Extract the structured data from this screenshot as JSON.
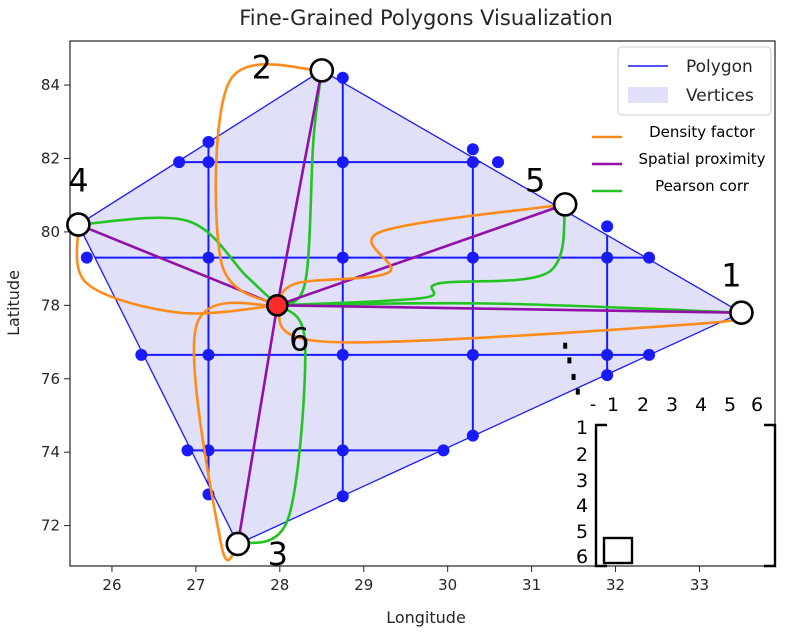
{
  "chart_data": {
    "type": "scatter",
    "title": "Fine-Grained Polygons Visualization",
    "xlabel": "Longitude",
    "ylabel": "Latitude",
    "xlim": [
      25.5,
      33.9
    ],
    "ylim": [
      70.9,
      85.2
    ],
    "xticks": [
      26,
      27,
      28,
      29,
      30,
      31,
      32,
      33
    ],
    "yticks": [
      72,
      74,
      76,
      78,
      80,
      82,
      84
    ],
    "grid": false,
    "legend_placement": "top-right",
    "colors": {
      "polygon_edge": "#1a1aff",
      "polygon_fill": "#e0e0f8",
      "density": "#ff8c1a",
      "spatial": "#9010a8",
      "pearson": "#22c422",
      "center": "#ff2a2a"
    },
    "legend": [
      {
        "label": "Polygon",
        "kind": "line",
        "color": "#1a1aff"
      },
      {
        "label": "Vertices",
        "kind": "patch",
        "color": "#e0e0f8"
      }
    ],
    "legend2": [
      {
        "label": "Density factor",
        "color": "#ff8c1a"
      },
      {
        "label": "Spatial proximity",
        "color": "#9010a8"
      },
      {
        "label": "Pearson corr",
        "color": "#22c422"
      }
    ],
    "polygon": [
      [
        33.5,
        77.8
      ],
      [
        28.5,
        84.4
      ],
      [
        25.6,
        80.2
      ],
      [
        27.5,
        71.5
      ]
    ],
    "vertices": [
      {
        "label": "1",
        "x": 33.5,
        "y": 77.8
      },
      {
        "label": "2",
        "x": 28.5,
        "y": 84.4
      },
      {
        "label": "3",
        "x": 27.5,
        "y": 71.5
      },
      {
        "label": "4",
        "x": 25.6,
        "y": 80.2
      },
      {
        "label": "5",
        "x": 31.4,
        "y": 80.75
      }
    ],
    "center": {
      "label": "6",
      "x": 27.97,
      "y": 78.0
    },
    "grid_x": [
      27.15,
      28.75,
      30.3,
      31.9
    ],
    "grid_y": [
      81.9,
      79.3,
      76.65,
      74.05
    ],
    "grid_points": [
      [
        27.15,
        82.45
      ],
      [
        26.8,
        81.9
      ],
      [
        27.15,
        81.9
      ],
      [
        28.75,
        81.9
      ],
      [
        30.3,
        82.25
      ],
      [
        30.3,
        81.9
      ],
      [
        30.6,
        81.9
      ],
      [
        28.75,
        84.2
      ],
      [
        25.7,
        79.3
      ],
      [
        27.15,
        79.3
      ],
      [
        28.75,
        79.3
      ],
      [
        30.3,
        79.3
      ],
      [
        31.9,
        80.15
      ],
      [
        31.9,
        79.3
      ],
      [
        32.4,
        79.3
      ],
      [
        26.35,
        76.65
      ],
      [
        27.15,
        76.65
      ],
      [
        28.75,
        76.65
      ],
      [
        30.3,
        76.65
      ],
      [
        31.9,
        76.65
      ],
      [
        32.4,
        76.65
      ],
      [
        31.9,
        76.1
      ],
      [
        26.9,
        74.05
      ],
      [
        27.15,
        74.05
      ],
      [
        28.75,
        74.05
      ],
      [
        29.95,
        74.05
      ],
      [
        30.3,
        74.45
      ],
      [
        27.15,
        72.85
      ],
      [
        28.75,
        72.8
      ]
    ],
    "pearson_curves": [
      [
        [
          27.97,
          78.0
        ],
        [
          30.5,
          78.05
        ],
        [
          33.5,
          77.8
        ]
      ],
      [
        [
          27.97,
          78.0
        ],
        [
          28.3,
          78.6
        ],
        [
          28.4,
          82.5
        ],
        [
          28.5,
          84.4
        ]
      ],
      [
        [
          27.97,
          78.0
        ],
        [
          28.3,
          77.0
        ],
        [
          28.1,
          72.2
        ],
        [
          27.5,
          71.5
        ]
      ],
      [
        [
          27.97,
          78.0
        ],
        [
          27.6,
          78.8
        ],
        [
          26.9,
          80.3
        ],
        [
          25.6,
          80.2
        ]
      ],
      [
        [
          27.97,
          78.0
        ],
        [
          29.7,
          78.2
        ],
        [
          29.9,
          78.6
        ],
        [
          31.2,
          78.9
        ],
        [
          31.4,
          80.75
        ]
      ]
    ],
    "spatial_lines": [
      [
        [
          27.97,
          78.0
        ],
        [
          33.5,
          77.8
        ]
      ],
      [
        [
          27.97,
          78.0
        ],
        [
          28.5,
          84.4
        ]
      ],
      [
        [
          27.97,
          78.0
        ],
        [
          27.5,
          71.5
        ]
      ],
      [
        [
          27.97,
          78.0
        ],
        [
          25.6,
          80.2
        ]
      ],
      [
        [
          27.97,
          78.0
        ],
        [
          31.4,
          80.75
        ]
      ]
    ],
    "density_curves": [
      [
        [
          27.97,
          78.0
        ],
        [
          28.6,
          77.0
        ],
        [
          33.0,
          77.5
        ],
        [
          33.5,
          77.8
        ]
      ],
      [
        [
          27.97,
          78.0
        ],
        [
          27.3,
          79.2
        ],
        [
          27.4,
          84.1
        ],
        [
          28.5,
          84.4
        ]
      ],
      [
        [
          27.97,
          78.0
        ],
        [
          27.0,
          77.4
        ],
        [
          27.3,
          71.5
        ],
        [
          27.5,
          71.5
        ]
      ],
      [
        [
          27.97,
          78.0
        ],
        [
          26.8,
          77.8
        ],
        [
          25.7,
          78.6
        ],
        [
          25.6,
          80.2
        ]
      ],
      [
        [
          27.97,
          78.0
        ],
        [
          28.2,
          78.6
        ],
        [
          29.3,
          78.9
        ],
        [
          29.2,
          80.0
        ],
        [
          31.4,
          80.75
        ]
      ]
    ],
    "matrix": {
      "col_labels": [
        "1",
        "2",
        "3",
        "4",
        "5",
        "6"
      ],
      "row_labels": [
        "1",
        "2",
        "3",
        "4",
        "5",
        "6"
      ],
      "dash_label": "-",
      "highlighted_cell": {
        "row": 6,
        "col": 1
      },
      "trail": [
        [
          31.55,
          75.65
        ],
        [
          31.5,
          76.05
        ],
        [
          31.45,
          76.5
        ],
        [
          31.4,
          76.9
        ]
      ]
    }
  }
}
